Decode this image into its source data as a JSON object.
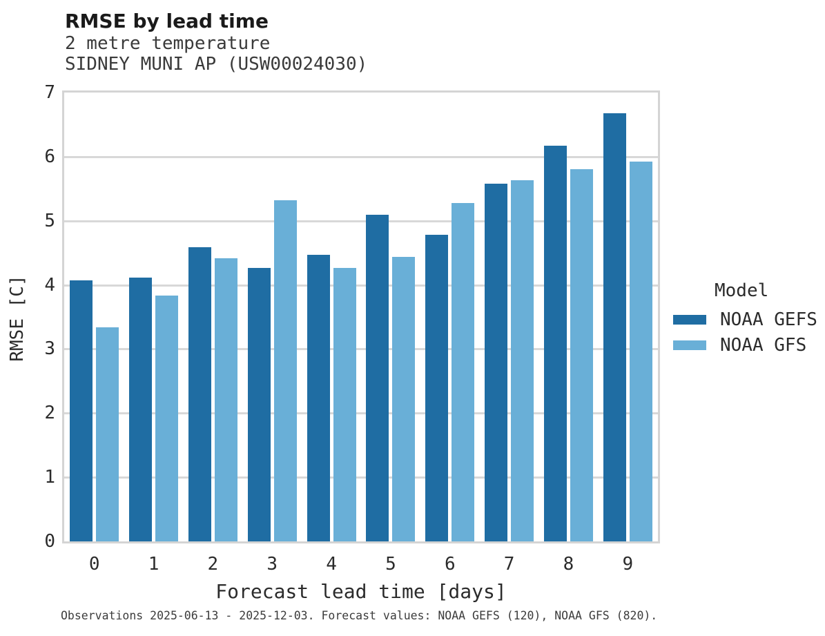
{
  "header": {
    "title": "RMSE by lead time",
    "subtitle1": "2 metre temperature",
    "subtitle2": "SIDNEY MUNI AP (USW00024030)"
  },
  "footer": {
    "note": "Observations 2025-06-13 - 2025-12-03. Forecast values: NOAA GEFS (120), NOAA GFS (820)."
  },
  "colors": {
    "gefs": "#1f6da3",
    "gfs": "#69afd7",
    "grid": "#d8d8d8"
  },
  "chart_data": {
    "type": "bar",
    "title": "RMSE by lead time",
    "subtitle": [
      "2 metre temperature",
      "SIDNEY MUNI AP (USW00024030)"
    ],
    "categories": [
      "0",
      "1",
      "2",
      "3",
      "4",
      "5",
      "6",
      "7",
      "8",
      "9"
    ],
    "series": [
      {
        "name": "NOAA GEFS",
        "color": "#1f6da3",
        "values": [
          4.07,
          4.11,
          4.59,
          4.26,
          4.47,
          5.09,
          4.78,
          5.58,
          6.17,
          6.68
        ]
      },
      {
        "name": "NOAA GFS",
        "color": "#69afd7",
        "values": [
          3.34,
          3.83,
          4.42,
          5.32,
          4.27,
          4.44,
          5.28,
          5.63,
          5.81,
          5.92
        ]
      }
    ],
    "xlabel": "Forecast lead time [days]",
    "ylabel": "RMSE [C]",
    "ylim": [
      0,
      7
    ],
    "yticks": [
      0,
      1,
      2,
      3,
      4,
      5,
      6,
      7
    ],
    "grid": true,
    "legend_title": "Model",
    "legend_position": "right",
    "caption": "Observations 2025-06-13 - 2025-12-03. Forecast values: NOAA GEFS (120), NOAA GFS (820)."
  }
}
